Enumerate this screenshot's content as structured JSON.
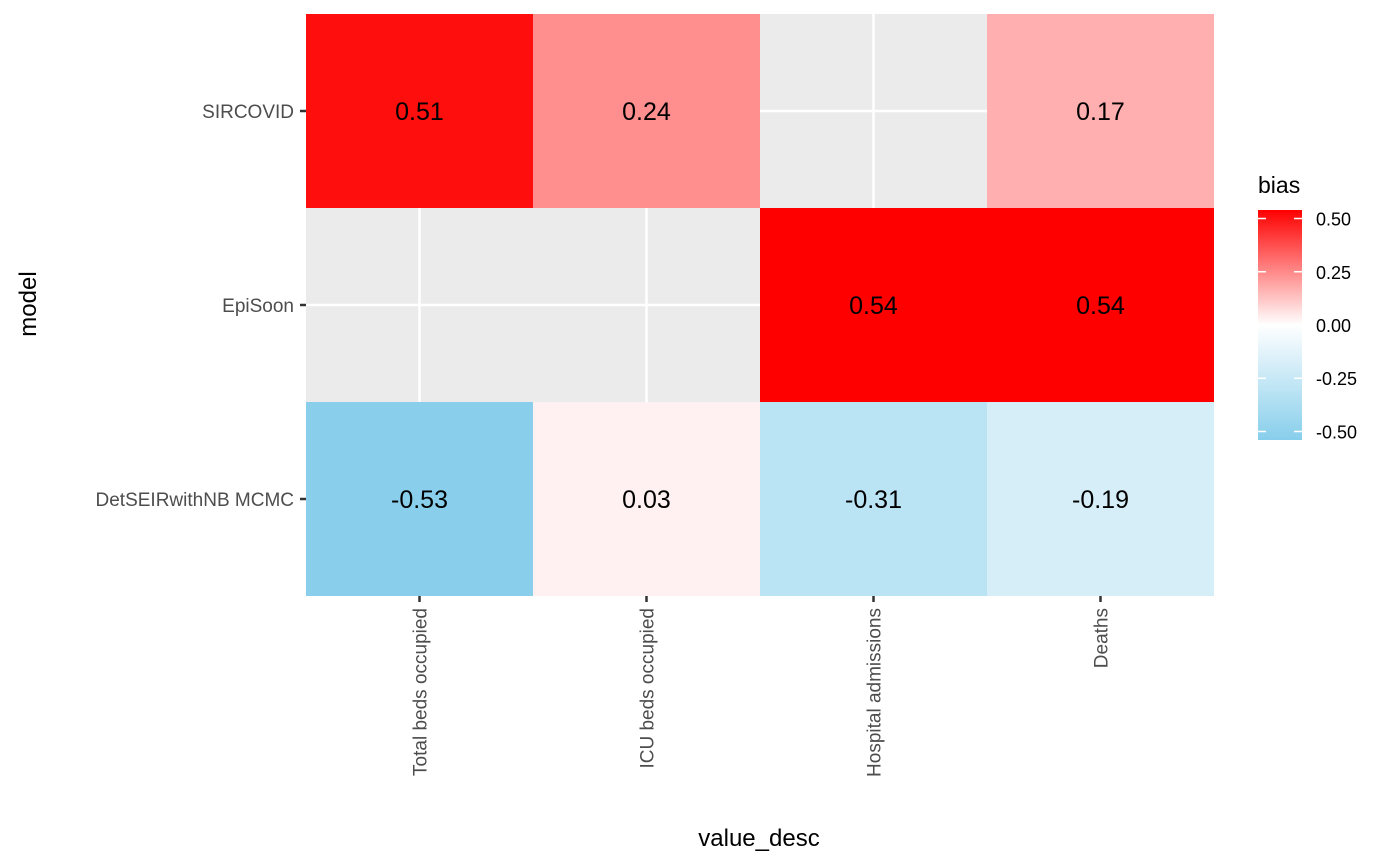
{
  "chart_data": {
    "type": "heatmap",
    "xlabel": "value_desc",
    "ylabel": "model",
    "x_categories": [
      "Total beds occupied",
      "ICU beds occupied",
      "Hospital admissions",
      "Deaths"
    ],
    "y_categories": [
      "SIRCOVID",
      "EpiSoon",
      "DetSEIRwithNB MCMC"
    ],
    "cells": [
      {
        "model": "SIRCOVID",
        "value_desc": "Total beds occupied",
        "bias": 0.51,
        "label": "0.51"
      },
      {
        "model": "SIRCOVID",
        "value_desc": "ICU beds occupied",
        "bias": 0.24,
        "label": "0.24"
      },
      {
        "model": "SIRCOVID",
        "value_desc": "Deaths",
        "bias": 0.17,
        "label": "0.17"
      },
      {
        "model": "EpiSoon",
        "value_desc": "Hospital admissions",
        "bias": 0.54,
        "label": "0.54"
      },
      {
        "model": "EpiSoon",
        "value_desc": "Deaths",
        "bias": 0.54,
        "label": "0.54"
      },
      {
        "model": "DetSEIRwithNB MCMC",
        "value_desc": "Total beds occupied",
        "bias": -0.53,
        "label": "-0.53"
      },
      {
        "model": "DetSEIRwithNB MCMC",
        "value_desc": "ICU beds occupied",
        "bias": 0.03,
        "label": "0.03"
      },
      {
        "model": "DetSEIRwithNB MCMC",
        "value_desc": "Hospital admissions",
        "bias": -0.31,
        "label": "-0.31"
      },
      {
        "model": "DetSEIRwithNB MCMC",
        "value_desc": "Deaths",
        "bias": -0.19,
        "label": "-0.19"
      }
    ],
    "legend": {
      "title": "bias",
      "position": "right",
      "limits": [
        -0.54,
        0.54
      ],
      "breaks": [
        0.5,
        0.25,
        0.0,
        -0.25,
        -0.5
      ],
      "break_labels": [
        "0.50",
        "0.25",
        "0.00",
        "-0.25",
        "-0.50"
      ],
      "low_color": "#87CEEB",
      "mid_color": "#FFFFFF",
      "high_color": "#FF0000"
    },
    "panel_background": "#EBEBEB",
    "grid_color": "#FFFFFF",
    "grid": true
  }
}
